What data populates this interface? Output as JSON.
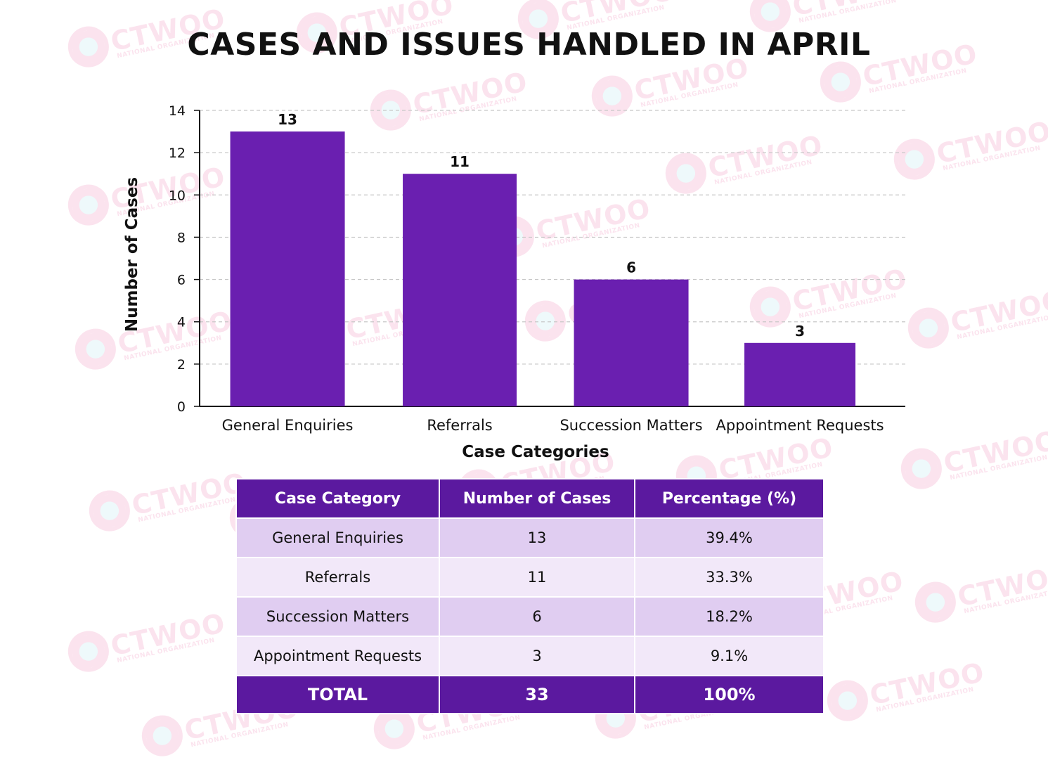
{
  "watermark": {
    "brand": "CTWOO",
    "tagline": "NATIONAL ORGANIZATION"
  },
  "colors": {
    "bar": "#6a1fb0",
    "table_header": "#5b199f",
    "row_a": "#e0cdf1",
    "row_b": "#f2e8f9",
    "grid": "#c8c8c8"
  },
  "chart_data": {
    "type": "bar",
    "title": "CASES AND ISSUES HANDLED IN APRIL",
    "xlabel": "Case Categories",
    "ylabel": "Number of Cases",
    "categories": [
      "General Enquiries",
      "Referrals",
      "Succession Matters",
      "Appointment Requests"
    ],
    "values": [
      13,
      11,
      6,
      3
    ],
    "ylim": [
      0,
      14
    ],
    "yticks": [
      0,
      2,
      4,
      6,
      8,
      10,
      12,
      14
    ],
    "grid": "horizontal dashed",
    "data_labels": true
  },
  "table": {
    "headers": [
      "Case Category",
      "Number of Cases",
      "Percentage (%)"
    ],
    "rows": [
      [
        "General Enquiries",
        "13",
        "39.4%"
      ],
      [
        "Referrals",
        "11",
        "33.3%"
      ],
      [
        "Succession Matters",
        "6",
        "18.2%"
      ],
      [
        "Appointment Requests",
        "3",
        "9.1%"
      ]
    ],
    "total": [
      "TOTAL",
      "33",
      "100%"
    ]
  }
}
